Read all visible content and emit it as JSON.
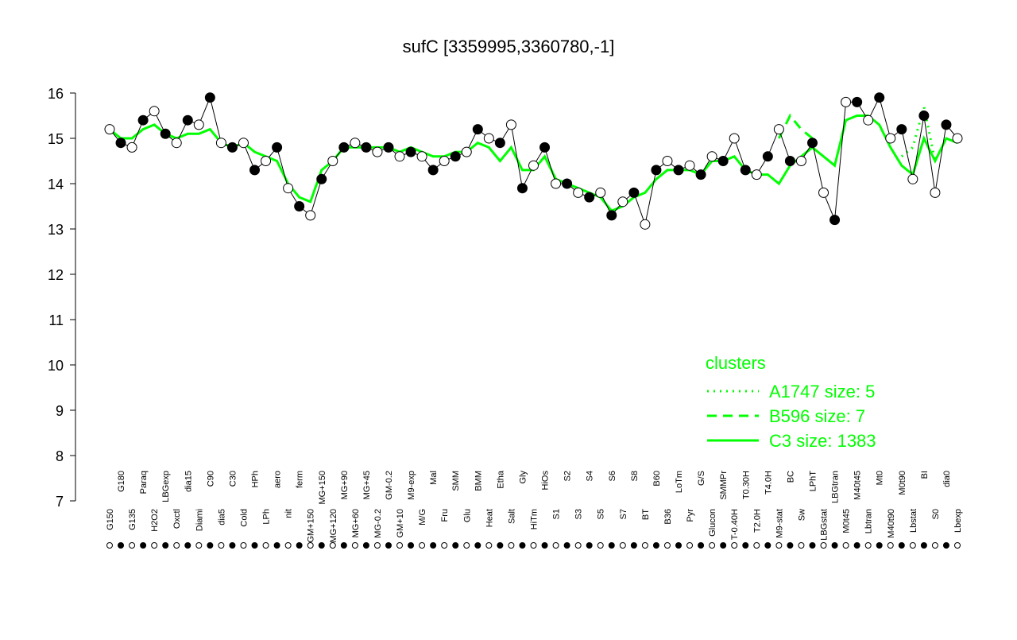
{
  "chart_data": {
    "type": "line",
    "title": "sufC [3359995,3360780,-1]",
    "categories": [
      "G150",
      "G180",
      "G135",
      "Paraq",
      "H2O2",
      "LBGexp",
      "Oxctl",
      "dia15",
      "Diami",
      "C90",
      "dia5",
      "C30",
      "Cold",
      "HPh",
      "LPh",
      "aero",
      "nit",
      "ferm",
      "GM+150",
      "MG+150",
      "MG+120",
      "MG+90",
      "MG+60",
      "MG+45",
      "MG-0.2",
      "GM-0.2",
      "GM+10",
      "M9-exp",
      "M/G",
      "Mal",
      "Fru",
      "SMM",
      "Glu",
      "BMM",
      "Heat",
      "Etha",
      "Salt",
      "Gly",
      "HiTm",
      "HiOs",
      "S1",
      "S2",
      "S3",
      "S4",
      "S5",
      "S6",
      "S7",
      "S8",
      "BT",
      "B60",
      "B36",
      "LoTm",
      "Pyr",
      "G/S",
      "Glucon",
      "SMMPr",
      "T-0.40H",
      "T0.30H",
      "T2.0H",
      "T4.0H",
      "M9-stat",
      "BC",
      "Sw",
      "LPhT",
      "LBGstat",
      "LBGtran",
      "M0t45",
      "M40t45",
      "Lbtran",
      "Mt0",
      "M40t90",
      "M0t90",
      "Lbstat",
      "BI",
      "S0",
      "dia0",
      "Lbexp"
    ],
    "values": [
      15.2,
      14.9,
      14.8,
      15.4,
      15.6,
      15.1,
      14.9,
      15.4,
      15.3,
      15.9,
      14.9,
      14.8,
      14.9,
      14.3,
      14.5,
      14.8,
      13.9,
      13.5,
      13.3,
      14.1,
      14.5,
      14.8,
      14.9,
      14.8,
      14.7,
      14.8,
      14.6,
      14.7,
      14.6,
      14.3,
      14.5,
      14.6,
      14.7,
      15.2,
      15.0,
      14.9,
      15.3,
      13.9,
      14.4,
      14.8,
      14.0,
      14.0,
      13.8,
      13.7,
      13.8,
      13.3,
      13.6,
      13.8,
      13.1,
      14.3,
      14.5,
      14.3,
      14.4,
      14.2,
      14.6,
      14.5,
      15.0,
      14.3,
      14.2,
      14.6,
      15.2,
      14.5,
      14.5,
      14.9,
      13.8,
      13.2,
      15.8,
      15.8,
      15.4,
      15.9,
      15.0,
      15.2,
      14.1,
      15.5,
      13.8,
      15.3,
      15.0
    ],
    "color": "#000000",
    "legend_title": "clusters",
    "series": [
      {
        "name": "A1747 size: 5",
        "color": "#00ff00",
        "dash": "dotted",
        "values": [
          null,
          null,
          null,
          null,
          null,
          null,
          null,
          null,
          null,
          null,
          null,
          null,
          null,
          null,
          null,
          null,
          null,
          null,
          null,
          null,
          null,
          null,
          null,
          null,
          null,
          null,
          null,
          null,
          null,
          null,
          null,
          null,
          null,
          null,
          null,
          null,
          null,
          null,
          null,
          null,
          null,
          null,
          null,
          null,
          null,
          null,
          null,
          null,
          null,
          null,
          null,
          null,
          null,
          null,
          null,
          null,
          null,
          null,
          null,
          null,
          null,
          null,
          null,
          null,
          null,
          null,
          null,
          null,
          null,
          null,
          null,
          14.6,
          14.8,
          15.7,
          14.5,
          null,
          null
        ]
      },
      {
        "name": "B596 size: 7",
        "color": "#00ff00",
        "dash": "dashed",
        "values": [
          null,
          null,
          null,
          null,
          null,
          null,
          null,
          null,
          null,
          null,
          null,
          null,
          null,
          null,
          null,
          null,
          null,
          null,
          null,
          null,
          null,
          null,
          null,
          null,
          null,
          null,
          null,
          null,
          null,
          null,
          null,
          null,
          null,
          null,
          null,
          null,
          null,
          null,
          null,
          null,
          null,
          null,
          null,
          null,
          null,
          null,
          null,
          null,
          null,
          null,
          null,
          null,
          null,
          null,
          null,
          null,
          null,
          null,
          null,
          null,
          15.0,
          15.5,
          15.2,
          15.0,
          null,
          null,
          null,
          null,
          null,
          null,
          null,
          null,
          null,
          null,
          null,
          null,
          null
        ]
      },
      {
        "name": "C3 size: 1383",
        "color": "#00ff00",
        "dash": "solid",
        "values": [
          15.2,
          15.0,
          15.0,
          15.2,
          15.3,
          15.1,
          15.0,
          15.1,
          15.1,
          15.2,
          14.9,
          14.8,
          14.9,
          14.7,
          14.6,
          14.5,
          14.0,
          13.7,
          13.6,
          14.3,
          14.5,
          14.8,
          14.8,
          14.8,
          14.8,
          14.8,
          14.7,
          14.8,
          14.7,
          14.6,
          14.6,
          14.7,
          14.7,
          14.9,
          14.8,
          14.5,
          14.8,
          14.3,
          14.3,
          14.6,
          14.1,
          14.0,
          13.9,
          13.8,
          13.7,
          13.4,
          13.5,
          13.7,
          13.8,
          14.1,
          14.3,
          14.3,
          14.3,
          14.2,
          14.5,
          14.5,
          14.6,
          14.3,
          14.2,
          14.2,
          14.0,
          14.4,
          14.6,
          14.8,
          14.6,
          14.4,
          15.4,
          15.5,
          15.5,
          15.3,
          14.8,
          14.4,
          14.2,
          15.0,
          14.5,
          15.0,
          14.9
        ]
      }
    ],
    "ylim": [
      7,
      16
    ],
    "yticks": [
      7,
      8,
      9,
      10,
      11,
      12,
      13,
      14,
      15,
      16
    ]
  }
}
